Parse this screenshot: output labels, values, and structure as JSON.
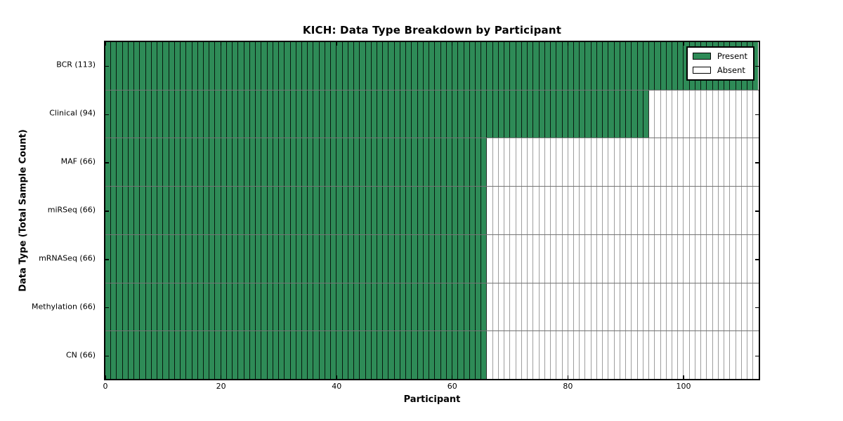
{
  "chart_data": {
    "type": "heatmap",
    "title": "KICH: Data Type Breakdown by Participant",
    "xlabel": "Participant",
    "ylabel": "Data Type (Total Sample Count)",
    "total_participants": 113,
    "xlim": [
      0,
      113
    ],
    "xticks": [
      0,
      20,
      40,
      60,
      80,
      100
    ],
    "grid": false,
    "legend_position": "upper right",
    "rows": [
      {
        "label": "BCR (113)",
        "data_type": "BCR",
        "present": 113,
        "absent": 0
      },
      {
        "label": "Clinical (94)",
        "data_type": "Clinical",
        "present": 94,
        "absent": 19
      },
      {
        "label": "MAF (66)",
        "data_type": "MAF",
        "present": 66,
        "absent": 47
      },
      {
        "label": "miRSeq (66)",
        "data_type": "miRSeq",
        "present": 66,
        "absent": 47
      },
      {
        "label": "mRNASeq (66)",
        "data_type": "mRNASeq",
        "present": 66,
        "absent": 47
      },
      {
        "label": "Methylation (66)",
        "data_type": "Methylation",
        "present": 66,
        "absent": 47
      },
      {
        "label": "CN (66)",
        "data_type": "CN",
        "present": 66,
        "absent": 47
      }
    ],
    "legend": [
      {
        "label": "Present",
        "color": "#2E8B57"
      },
      {
        "label": "Absent",
        "color": "#FFFFFF"
      }
    ],
    "colors": {
      "present": "#2E8B57",
      "absent": "#FFFFFF",
      "edge": "#000000",
      "background": "#FFFFFF"
    }
  }
}
